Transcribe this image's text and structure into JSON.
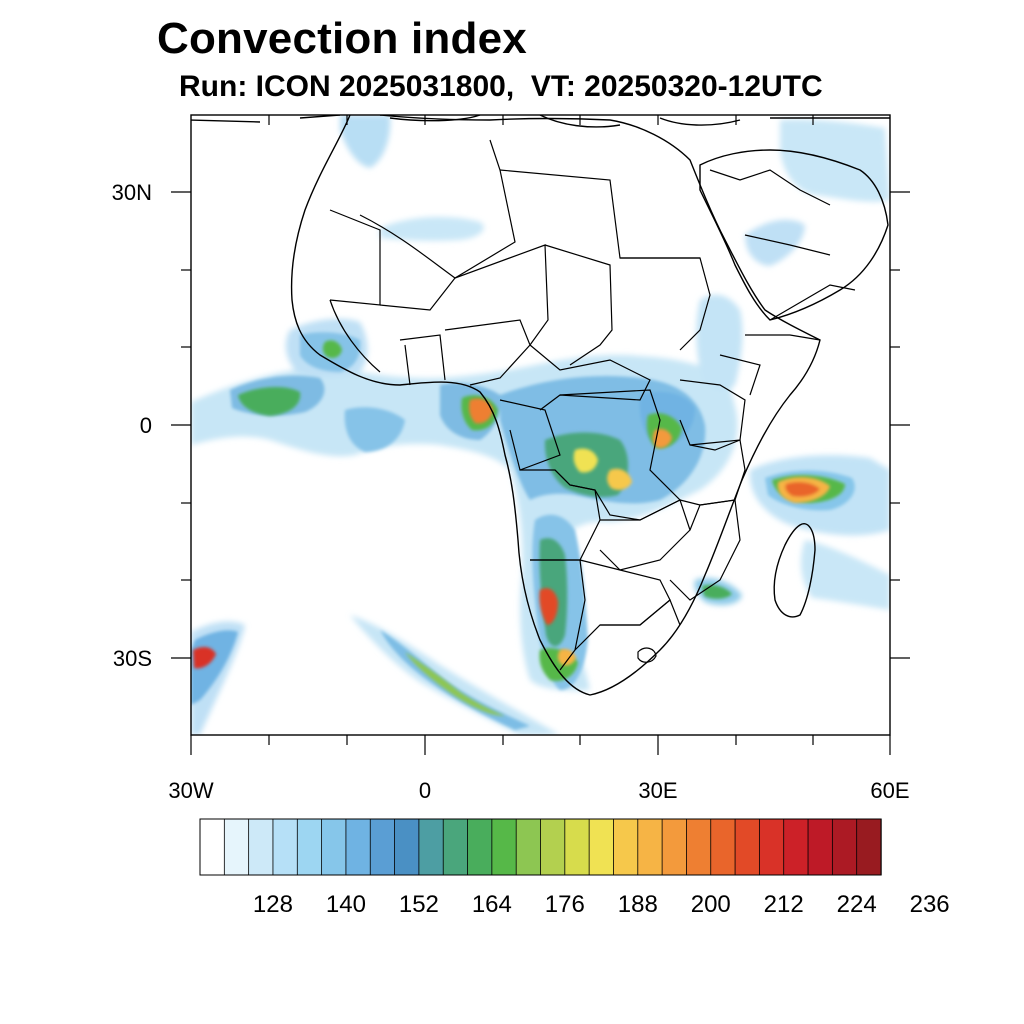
{
  "title": "Convection index",
  "subtitle": "Run: ICON 2025031800,  VT: 20250320-12UTC",
  "axes": {
    "lon_labels": [
      "30W",
      "0",
      "30E",
      "60E"
    ],
    "lat_labels": [
      "30N",
      "0",
      "30S"
    ],
    "lon_range": [
      -30,
      60
    ],
    "lat_range": [
      -40,
      40
    ]
  },
  "colorbar": {
    "tick_labels": [
      "128",
      "140",
      "152",
      "164",
      "176",
      "188",
      "200",
      "212",
      "224",
      "236"
    ],
    "colors": [
      "#ffffff",
      "#e6f5fc",
      "#cde9f8",
      "#b6e0f7",
      "#9dd6f2",
      "#86c6ea",
      "#6fb3e3",
      "#5a9ed4",
      "#4a90c4",
      "#4d9ea3",
      "#4aa67c",
      "#49ad5c",
      "#56b848",
      "#8dc652",
      "#b3d04f",
      "#d7dc4c",
      "#f0e253",
      "#f6c84b",
      "#f6b445",
      "#f39a3c",
      "#ee7f32",
      "#e9652b",
      "#e24a27",
      "#d93228",
      "#cc2128",
      "#be1a27",
      "#ac1a24",
      "#981b20"
    ]
  }
}
